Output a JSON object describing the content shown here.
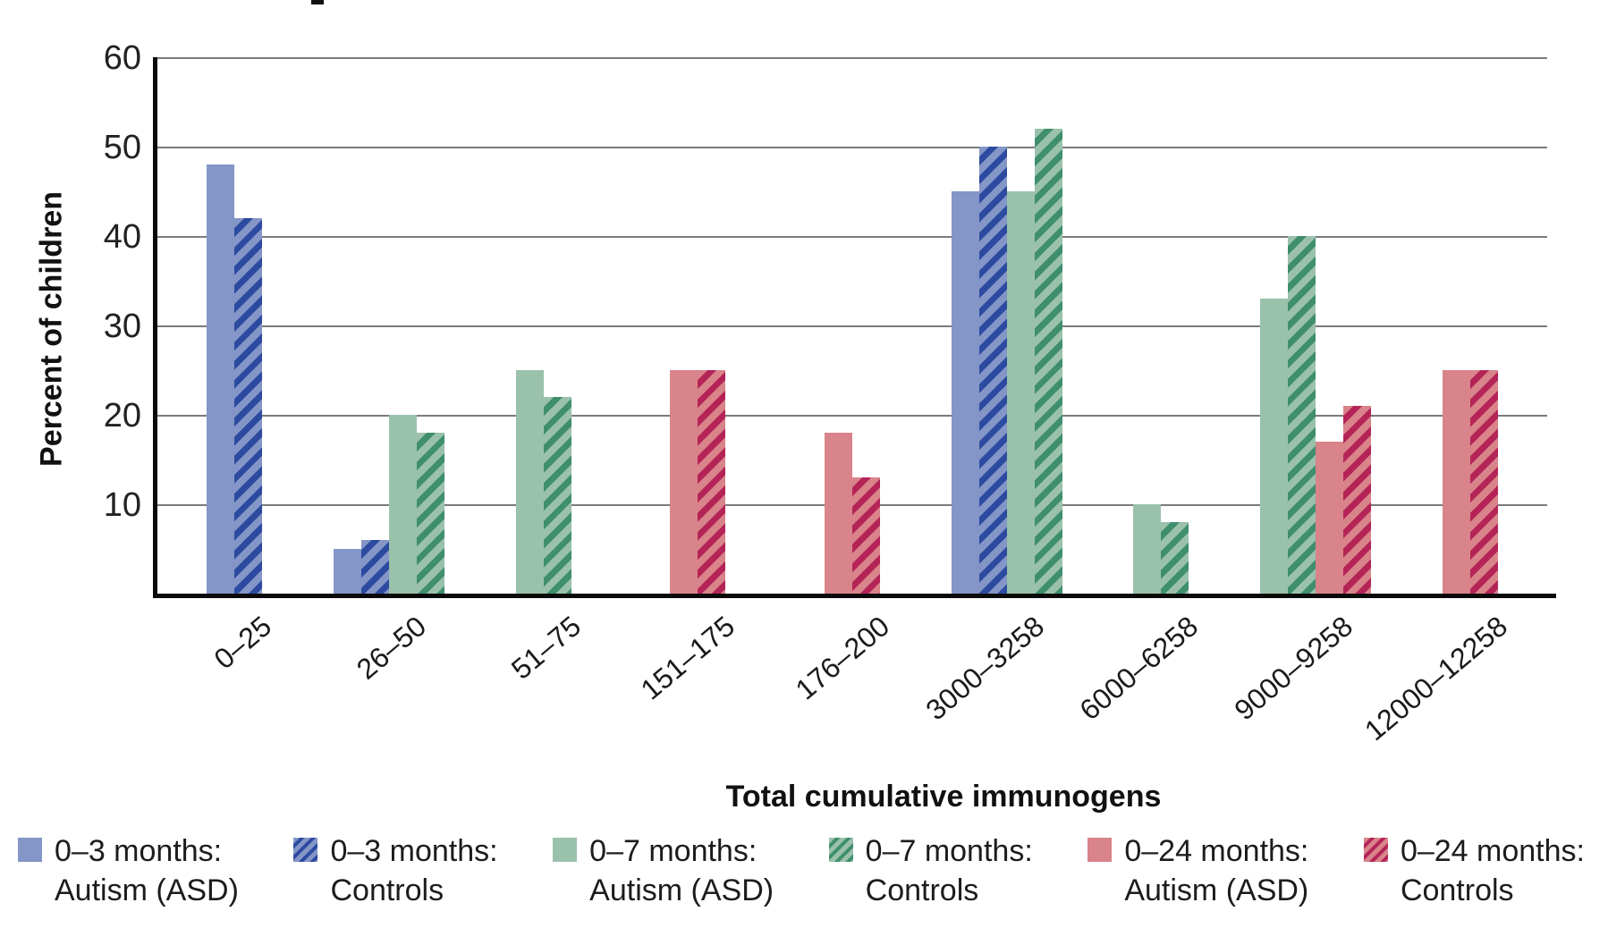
{
  "chart_data": {
    "type": "bar",
    "title": "",
    "xlabel": "Total cumulative immunogens",
    "ylabel": "Percent of children",
    "ylim": [
      0,
      60
    ],
    "yticks": [
      60,
      50,
      40,
      30,
      20,
      10
    ],
    "grid": true,
    "legend_position": "bottom",
    "categories": [
      "0–25",
      "26–50",
      "51–75",
      "151–175",
      "176–200",
      "3000–3258",
      "6000–6258",
      "9000–9258",
      "12000–12258"
    ],
    "series": [
      {
        "name": "0–3 months: Autism (ASD)",
        "label_line1": "0–3 months:",
        "label_line2": "Autism (ASD)",
        "pattern": "solid",
        "color": "#8495c7",
        "values": [
          48,
          5,
          null,
          null,
          null,
          45,
          null,
          null,
          null
        ]
      },
      {
        "name": "0–3 months: Controls",
        "label_line1": "0–3 months:",
        "label_line2": "Controls",
        "pattern": "hatch",
        "color": "#8495c7",
        "hatch_color": "#2c4ba0",
        "values": [
          42,
          6,
          null,
          null,
          null,
          50,
          null,
          null,
          null
        ]
      },
      {
        "name": "0–7 months: Autism (ASD)",
        "label_line1": "0–7 months:",
        "label_line2": "Autism (ASD)",
        "pattern": "solid",
        "color": "#9ac1ab",
        "values": [
          null,
          20,
          25,
          null,
          null,
          45,
          10,
          33,
          null
        ]
      },
      {
        "name": "0–7 months: Controls",
        "label_line1": "0–7 months:",
        "label_line2": "Controls",
        "pattern": "hatch",
        "color": "#9ac1ab",
        "hatch_color": "#3f8e6d",
        "values": [
          null,
          18,
          22,
          null,
          null,
          52,
          8,
          40,
          null
        ]
      },
      {
        "name": "0–24 months: Autism (ASD)",
        "label_line1": "0–24 months:",
        "label_line2": "Autism (ASD)",
        "pattern": "solid",
        "color": "#d9838a",
        "values": [
          null,
          null,
          null,
          25,
          18,
          null,
          null,
          17,
          25
        ]
      },
      {
        "name": "0–24 months: Controls",
        "label_line1": "0–24 months:",
        "label_line2": "Controls",
        "pattern": "hatch",
        "color": "#d9838a",
        "hatch_color": "#b42457",
        "values": [
          null,
          null,
          null,
          25,
          13,
          null,
          null,
          21,
          25
        ]
      }
    ]
  }
}
